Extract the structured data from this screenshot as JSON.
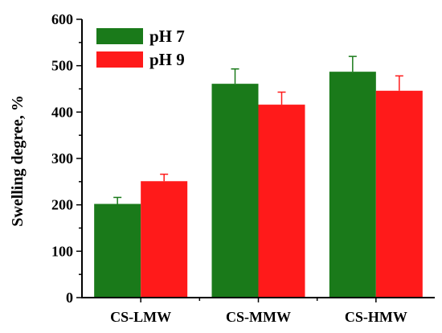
{
  "chart_data": {
    "type": "bar",
    "categories": [
      "CS-LMW",
      "CS-MMW",
      "CS-HMW"
    ],
    "series": [
      {
        "name": "pH 7",
        "color": "#1a7a1a",
        "values": [
          202,
          461,
          487
        ],
        "error": [
          14,
          32,
          33
        ]
      },
      {
        "name": "pH 9",
        "color": "#ff1a1a",
        "values": [
          251,
          416,
          446
        ],
        "error": [
          15,
          27,
          32
        ]
      }
    ],
    "ylabel": "Swelling degree, %",
    "xlabel": "",
    "title": "",
    "ylim": [
      0,
      600
    ],
    "yticks": [
      0,
      100,
      200,
      300,
      400,
      500,
      600
    ],
    "yticks_minor_step": 50,
    "grid": false,
    "legend_position": "top-left"
  }
}
